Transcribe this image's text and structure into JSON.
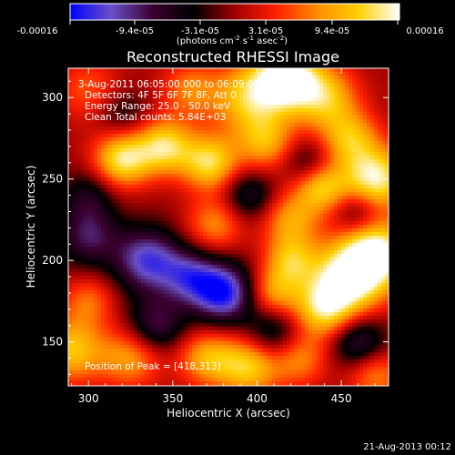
{
  "chart_data": {
    "type": "heatmap",
    "title": "Reconstructed RHESSI Image",
    "xlabel": "Heliocentric X (arcsec)",
    "ylabel": "Heliocentric Y (arcsec)",
    "xlim": [
      288,
      478
    ],
    "ylim": [
      123,
      318
    ],
    "xticks": [
      300,
      350,
      400,
      450
    ],
    "yticks": [
      150,
      200,
      250,
      300
    ],
    "colorbar": {
      "range": [
        -0.00016,
        0.00016
      ],
      "tick_labels": [
        "-0.00016",
        "-9.4e-05",
        "-3.1e-05",
        "3.1e-05",
        "9.4e-05",
        "0.00016"
      ],
      "unit_label": "(photons cm",
      "unit_sup1": "-2",
      "unit_mid": " s",
      "unit_sup2": "-1",
      "unit_mid2": " asec",
      "unit_sup3": "-2",
      "unit_end": ")",
      "colormap": [
        "#0000ff",
        "#6a50c8",
        "#3a0030",
        "#000000",
        "#a00000",
        "#ff2000",
        "#ff8c00",
        "#ffd000",
        "#ffffff"
      ]
    },
    "annotations": {
      "time": "3-Aug-2011 06:05:00.000 to 06:09:00.000",
      "detectors": "Detectors: 4F 5F 6F 7F 8F, Att 0",
      "energy": "Energy Range: 25.0 - 50.0 keV",
      "clean": "Clean     Total counts: 5.84E+03",
      "peak": "Position of Peak = [418,313]"
    },
    "peak_position": [
      418,
      313
    ],
    "blobs": [
      {
        "x": 418,
        "y": 313,
        "v": 1.0,
        "r": 13
      },
      {
        "x": 396,
        "y": 300,
        "v": 0.75,
        "r": 16
      },
      {
        "x": 440,
        "y": 300,
        "v": 0.7,
        "r": 14
      },
      {
        "x": 300,
        "y": 305,
        "v": 0.35,
        "r": 14
      },
      {
        "x": 360,
        "y": 305,
        "v": 0.45,
        "r": 12
      },
      {
        "x": 345,
        "y": 270,
        "v": 0.8,
        "r": 12
      },
      {
        "x": 320,
        "y": 262,
        "v": 0.85,
        "r": 12
      },
      {
        "x": 372,
        "y": 260,
        "v": 0.8,
        "r": 12
      },
      {
        "x": 405,
        "y": 272,
        "v": 0.55,
        "r": 12
      },
      {
        "x": 470,
        "y": 250,
        "v": 0.95,
        "r": 14
      },
      {
        "x": 438,
        "y": 245,
        "v": 0.7,
        "r": 11
      },
      {
        "x": 455,
        "y": 275,
        "v": 0.6,
        "r": 12
      },
      {
        "x": 375,
        "y": 222,
        "v": 0.5,
        "r": 12
      },
      {
        "x": 420,
        "y": 225,
        "v": 0.55,
        "r": 12
      },
      {
        "x": 472,
        "y": 205,
        "v": 0.9,
        "r": 14
      },
      {
        "x": 455,
        "y": 190,
        "v": 1.0,
        "r": 16
      },
      {
        "x": 420,
        "y": 200,
        "v": 0.6,
        "r": 11
      },
      {
        "x": 440,
        "y": 170,
        "v": 0.75,
        "r": 13
      },
      {
        "x": 410,
        "y": 180,
        "v": 0.55,
        "r": 11
      },
      {
        "x": 290,
        "y": 145,
        "v": 0.7,
        "r": 14
      },
      {
        "x": 325,
        "y": 140,
        "v": 0.55,
        "r": 13
      },
      {
        "x": 300,
        "y": 175,
        "v": 0.4,
        "r": 11
      },
      {
        "x": 395,
        "y": 135,
        "v": 0.75,
        "r": 13
      },
      {
        "x": 370,
        "y": 140,
        "v": 0.6,
        "r": 12
      },
      {
        "x": 425,
        "y": 140,
        "v": 0.5,
        "r": 12
      },
      {
        "x": 470,
        "y": 130,
        "v": 0.5,
        "r": 12
      },
      {
        "x": 335,
        "y": 200,
        "v": -0.8,
        "r": 14
      },
      {
        "x": 300,
        "y": 215,
        "v": -0.55,
        "r": 13
      },
      {
        "x": 380,
        "y": 180,
        "v": -0.95,
        "r": 13
      },
      {
        "x": 360,
        "y": 190,
        "v": -0.6,
        "r": 12
      },
      {
        "x": 460,
        "y": 150,
        "v": -0.6,
        "r": 12
      },
      {
        "x": 410,
        "y": 155,
        "v": -0.5,
        "r": 12
      },
      {
        "x": 340,
        "y": 160,
        "v": -0.55,
        "r": 12
      },
      {
        "x": 395,
        "y": 240,
        "v": -0.45,
        "r": 11
      },
      {
        "x": 300,
        "y": 240,
        "v": -0.35,
        "r": 11
      },
      {
        "x": 430,
        "y": 260,
        "v": -0.35,
        "r": 10
      },
      {
        "x": 460,
        "y": 230,
        "v": -0.4,
        "r": 10
      },
      {
        "x": 320,
        "y": 290,
        "v": -0.3,
        "r": 11
      }
    ]
  },
  "footer": {
    "date": "21-Aug-2013 00:12"
  }
}
